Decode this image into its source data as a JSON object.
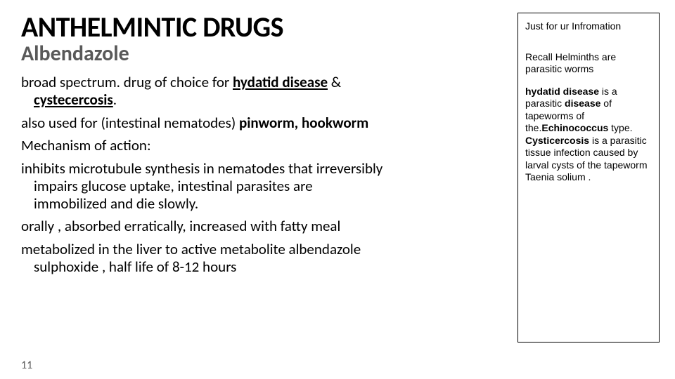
{
  "title": "ANTHELMINTIC DRUGS",
  "subtitle": "Albendazole",
  "body": {
    "p1_a": "broad spectrum. drug of choice for ",
    "p1_u1": "hydatid disease",
    "p1_b": " & ",
    "p1_u2": "cystecercosis",
    "p1_c": ".",
    "p2_a": "also used for (intestinal nematodes) ",
    "p2_b": "pinworm, hookworm",
    "p3": " Mechanism of action:",
    "p4": "inhibits microtubule synthesis in nematodes that irreversibly impairs glucose uptake, intestinal parasites are immobilized and die slowly.",
    "p5": "orally , absorbed erratically, increased with fatty meal",
    "p6": "metabolized in the liver to active metabolite albendazole sulphoxide , half life of 8-12 hours"
  },
  "page_number": "11",
  "sidebar": {
    "s1": "Just for ur Infromation",
    "s2": "Recall Helminths are parasitic worms",
    "s3_a": "hydatid disease",
    "s3_b": " is a parasitic ",
    "s3_c": "disease",
    "s3_d": " of tapeworms of the.",
    "s3_e": "Echinococcus",
    "s3_f": " type. ",
    "s3_g": "Cysticercosis",
    "s3_h": " is a parasitic tissue infection caused by larval cysts of the tapeworm Taenia solium ."
  }
}
